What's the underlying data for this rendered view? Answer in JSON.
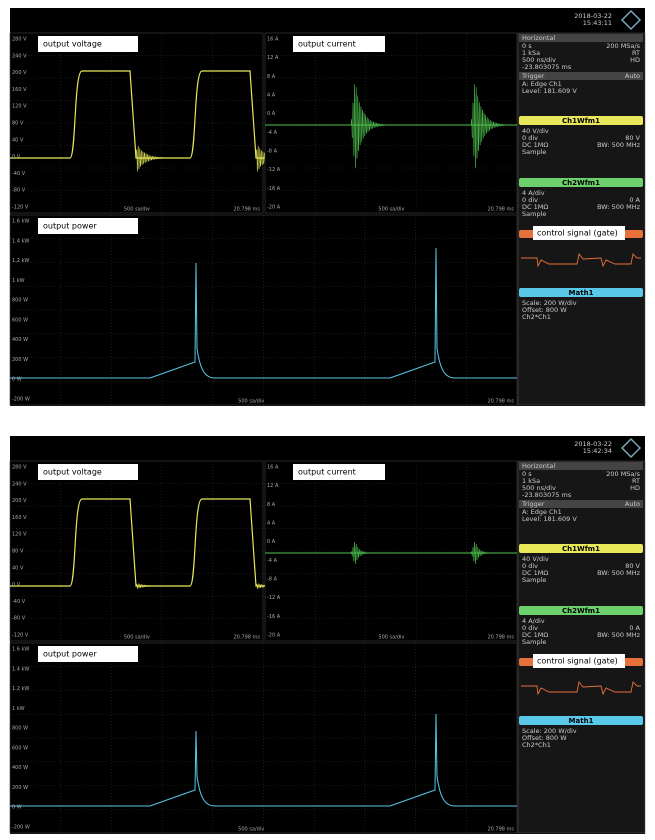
{
  "screens": [
    {
      "date": "2018-03-22",
      "time": "15:43:11",
      "voltage_plot": {
        "label": "output voltage",
        "ticks": [
          "280 V",
          "240 V",
          "200 V",
          "160 V",
          "120 V",
          "80 V",
          "40 V",
          "0 V",
          "-40 V",
          "-80 V",
          "-120 V"
        ],
        "footer_left": "500 sa/div",
        "footer_right": "20.798 ms"
      },
      "current_plot": {
        "label": "output current",
        "ticks": [
          "16 A",
          "12 A",
          "8 A",
          "4 A",
          "0 A",
          "-4 A",
          "-8 A",
          "-12 A",
          "-16 A",
          "-20 A"
        ],
        "footer_left": "500 sa/div",
        "footer_right": "20.798 ms"
      },
      "power_plot": {
        "label": "output power",
        "ticks": [
          "1.6 kW",
          "1.4 kW",
          "1.2 kW",
          "1 kW",
          "800 W",
          "600 W",
          "400 W",
          "200 W",
          "0 W",
          "-200 W"
        ],
        "footer_left": "500 sa/div",
        "footer_right": "20.798 ms"
      },
      "horizontal": {
        "title": "Horizontal",
        "rows": [
          [
            "0 s",
            "200 MSa/s"
          ],
          [
            "1 kSa",
            "RT"
          ],
          [
            "500 ns/div",
            "HD"
          ],
          [
            "-23.803075 ms"
          ]
        ]
      },
      "trigger": {
        "title": "Trigger",
        "mode": "Auto",
        "rows": [
          [
            "A:  Edge  Ch1"
          ],
          [
            "Level: 181.609 V"
          ]
        ]
      },
      "ch1": {
        "title": "Ch1Wfm1",
        "rows": [
          [
            "40 V/div"
          ],
          [
            "0 div",
            "80 V"
          ],
          [
            "DC 1MΩ",
            "BW: 500 MHz"
          ],
          [
            "Sample"
          ]
        ]
      },
      "ch2": {
        "title": "Ch2Wfm1",
        "rows": [
          [
            "4 A/div"
          ],
          [
            "0 div",
            "0 A"
          ],
          [
            "DC 1MΩ",
            "BW: 500 MHz"
          ],
          [
            "Sample"
          ]
        ]
      },
      "control": {
        "label": "control signal (gate)"
      },
      "math": {
        "title": "Math1",
        "rows": [
          [
            "Scale: 200 W/div"
          ],
          [
            "Offset: 800 W"
          ],
          [
            "Ch2*Ch1"
          ]
        ]
      }
    },
    {
      "date": "2018-03-22",
      "time": "15:42:34",
      "voltage_plot": {
        "label": "output voltage",
        "ticks": [
          "280 V",
          "240 V",
          "200 V",
          "160 V",
          "120 V",
          "80 V",
          "40 V",
          "0 V",
          "-40 V",
          "-80 V",
          "-120 V"
        ],
        "footer_left": "500 sa/div",
        "footer_right": "20.798 ms"
      },
      "current_plot": {
        "label": "output current",
        "ticks": [
          "16 A",
          "12 A",
          "8 A",
          "4 A",
          "0 A",
          "-4 A",
          "-8 A",
          "-12 A",
          "-16 A",
          "-20 A"
        ],
        "footer_left": "500 sa/div",
        "footer_right": "20.798 ms"
      },
      "power_plot": {
        "label": "output power",
        "ticks": [
          "1.6 kW",
          "1.4 kW",
          "1.2 kW",
          "1 kW",
          "800 W",
          "600 W",
          "400 W",
          "200 W",
          "0 W",
          "-200 W"
        ],
        "footer_left": "500 sa/div",
        "footer_right": "20.798 ms"
      },
      "horizontal": {
        "title": "Horizontal",
        "rows": [
          [
            "0 s",
            "200 MSa/s"
          ],
          [
            "1 kSa",
            "RT"
          ],
          [
            "500 ns/div",
            "HD"
          ],
          [
            "-23.803075 ms"
          ]
        ]
      },
      "trigger": {
        "title": "Trigger",
        "mode": "Auto",
        "rows": [
          [
            "A:  Edge  Ch1"
          ],
          [
            "Level: 181.609 V"
          ]
        ]
      },
      "ch1": {
        "title": "Ch1Wfm1",
        "rows": [
          [
            "40 V/div"
          ],
          [
            "0 div",
            "80 V"
          ],
          [
            "DC 1MΩ",
            "BW: 500 MHz"
          ],
          [
            "Sample"
          ]
        ]
      },
      "ch2": {
        "title": "Ch2Wfm1",
        "rows": [
          [
            "4 A/div"
          ],
          [
            "0 div",
            "0 A"
          ],
          [
            "DC 1MΩ",
            "BW: 500 MHz"
          ],
          [
            "Sample"
          ]
        ]
      },
      "control": {
        "label": "control signal (gate)"
      },
      "math": {
        "title": "Math1",
        "rows": [
          [
            "Scale: 200 W/div"
          ],
          [
            "Offset: 800 W"
          ],
          [
            "Ch2*Ch1"
          ]
        ]
      }
    }
  ]
}
